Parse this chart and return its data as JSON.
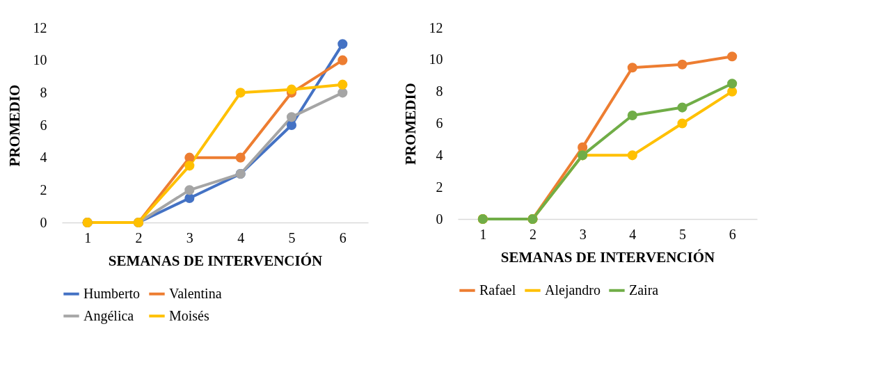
{
  "chart_data": [
    {
      "type": "line",
      "xlabel": "SEMANAS DE INTERVENCIÓN",
      "ylabel": "PROMEDIO",
      "categories": [
        "1",
        "2",
        "3",
        "4",
        "5",
        "6"
      ],
      "ylim": [
        0,
        12
      ],
      "yticks": [
        0,
        2,
        4,
        6,
        8,
        10,
        12
      ],
      "grid": false,
      "legend": "bottom",
      "marker": "circle",
      "line_style": "solid",
      "series": [
        {
          "name": "Humberto",
          "color": "#4472c4",
          "values": [
            0,
            0,
            1.5,
            3,
            6,
            11
          ]
        },
        {
          "name": "Valentina",
          "color": "#ed7d31",
          "values": [
            0,
            0,
            4,
            4,
            8,
            10
          ]
        },
        {
          "name": "Angélica",
          "color": "#a5a5a5",
          "values": [
            0,
            0,
            2,
            3,
            6.5,
            8
          ]
        },
        {
          "name": "Moisés",
          "color": "#ffc000",
          "values": [
            0,
            0,
            3.5,
            8,
            8.2,
            8.5
          ]
        }
      ]
    },
    {
      "type": "line",
      "xlabel": "SEMANAS DE INTERVENCIÓN",
      "ylabel": "PROMEDIO",
      "categories": [
        "1",
        "2",
        "3",
        "4",
        "5",
        "6"
      ],
      "ylim": [
        0,
        12
      ],
      "yticks": [
        0,
        2,
        4,
        6,
        8,
        10,
        12
      ],
      "grid": false,
      "legend": "bottom",
      "marker": "circle",
      "line_style": "solid",
      "series": [
        {
          "name": "Rafael",
          "color": "#ed7d31",
          "values": [
            0,
            0,
            4.5,
            9.5,
            9.7,
            10.2
          ]
        },
        {
          "name": "Alejandro",
          "color": "#ffc000",
          "values": [
            0,
            0,
            4,
            4,
            6,
            8
          ]
        },
        {
          "name": "Zaira",
          "color": "#70ad47",
          "values": [
            0,
            0,
            4,
            6.5,
            7,
            8.5
          ]
        }
      ]
    }
  ]
}
